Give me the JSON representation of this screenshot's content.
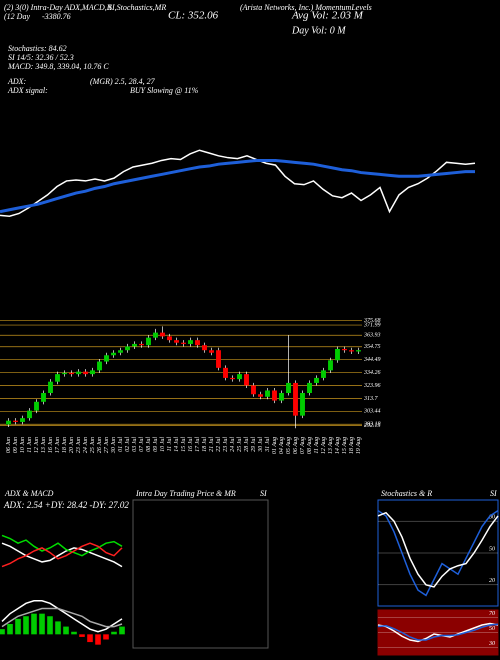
{
  "header": {
    "items": [
      "(2) 3(0) Intra-Day ADX,MACD,R",
      "SI,Stochastics,MR",
      "(Arista Networks, Inc.) MomentumLevels",
      "(12 Day",
      "-3380.76",
      "CL: 352.06",
      "Avg Vol: 2.03 M",
      "Day Vol: 0 M",
      "Stochastics: 84.62",
      "SI 14/5: 32.36 / 52.3",
      "MACD: 349.8, 339.04, 10.76 C",
      "ADX:",
      "(MGR) 2.5, 28.4, 27",
      "ADX signal:",
      "BUY Slowing @ 11%"
    ]
  },
  "chart_data": [
    {
      "type": "line",
      "ylim": [
        205,
        420
      ],
      "series": [
        {
          "color": "#ffffff",
          "values": [
            296,
            295,
            298,
            304,
            311,
            318,
            327,
            333,
            334,
            333,
            335,
            333,
            336,
            343,
            348,
            350,
            352,
            355,
            357,
            356,
            362,
            366,
            363,
            360,
            358,
            357,
            360,
            356,
            352,
            350,
            338,
            330,
            329,
            333,
            324,
            317,
            315,
            320,
            312,
            318,
            326,
            300,
            318,
            326,
            330,
            336,
            344,
            353,
            352,
            351,
            352.06
          ]
        },
        {
          "color": "#1e5fd9",
          "values": [
            300,
            302,
            304,
            306,
            308,
            311,
            314,
            317,
            320,
            322,
            325,
            327,
            330,
            332,
            334,
            336,
            338,
            340,
            342,
            344,
            346,
            348,
            349,
            351,
            352,
            353,
            354,
            355,
            355,
            355,
            354,
            353,
            352,
            351,
            349,
            347,
            345,
            344,
            342,
            341,
            340,
            339,
            338,
            338,
            338,
            339,
            340,
            341,
            342,
            343,
            343
          ]
        }
      ]
    },
    {
      "type": "candlestick",
      "ylim": [
        287,
        380
      ],
      "yticks": [
        375.68,
        371.99,
        363.93,
        354.75,
        344.49,
        334.26,
        323.96,
        313.7,
        303.44,
        293.18,
        292.15
      ],
      "up_color": "#00cc00",
      "down_color": "#ff0000",
      "level_color": "#c8961e",
      "categories": [
        "06 Jun",
        "09 Jun",
        "10 Jun",
        "11 Jun",
        "12 Jun",
        "13 Jun",
        "16 Jun",
        "17 Jun",
        "18 Jun",
        "20 Jun",
        "23 Jun",
        "24 Jun",
        "25 Jun",
        "26 Jun",
        "27 Jun",
        "30 Jun",
        "01 Jul",
        "02 Jul",
        "03 Jul",
        "07 Jul",
        "08 Jul",
        "09 Jul",
        "10 Jul",
        "11 Jul",
        "14 Jul",
        "15 Jul",
        "16 Jul",
        "17 Jul",
        "18 Jul",
        "21 Jul",
        "22 Jul",
        "23 Jul",
        "24 Jul",
        "25 Jul",
        "28 Jul",
        "29 Jul",
        "30 Jul",
        "31 Jul",
        "01 Aug",
        "04 Aug",
        "05 Aug",
        "06 Aug",
        "07 Aug",
        "08 Aug",
        "11 Aug",
        "12 Aug",
        "13 Aug",
        "14 Aug",
        "15 Aug",
        "18 Aug",
        "19 Aug"
      ],
      "open": [
        293,
        296,
        295,
        298,
        304,
        311,
        318,
        327,
        333,
        334,
        333,
        335,
        333,
        336,
        343,
        348,
        350,
        352,
        355,
        357,
        356,
        362,
        366,
        363,
        360,
        358,
        357,
        360,
        356,
        352,
        352,
        338,
        330,
        329,
        333,
        324,
        317,
        315,
        320,
        312,
        318,
        326,
        300,
        318,
        326,
        330,
        336,
        344,
        353,
        352,
        351
      ],
      "high": [
        298,
        298,
        300,
        306,
        313,
        320,
        329,
        335,
        336,
        336,
        337,
        337,
        338,
        345,
        350,
        352,
        354,
        357,
        359,
        359,
        364,
        369,
        371,
        365,
        362,
        360,
        362,
        362,
        358,
        354,
        354,
        340,
        332,
        335,
        335,
        326,
        319,
        322,
        322,
        320,
        364,
        328,
        320,
        328,
        332,
        338,
        346,
        355,
        355,
        354,
        354
      ],
      "low": [
        291,
        293,
        293,
        296,
        302,
        309,
        316,
        325,
        331,
        331,
        331,
        331,
        331,
        334,
        341,
        346,
        348,
        350,
        353,
        354,
        354,
        360,
        361,
        358,
        356,
        355,
        355,
        354,
        350,
        348,
        336,
        328,
        327,
        327,
        322,
        315,
        313,
        313,
        310,
        310,
        316,
        290,
        298,
        316,
        324,
        328,
        334,
        342,
        350,
        349,
        349
      ],
      "close": [
        296,
        295,
        298,
        304,
        311,
        318,
        327,
        333,
        334,
        333,
        335,
        333,
        336,
        343,
        348,
        350,
        352,
        355,
        357,
        356,
        362,
        366,
        363,
        360,
        358,
        357,
        360,
        356,
        352,
        350,
        338,
        330,
        329,
        333,
        324,
        317,
        315,
        320,
        312,
        318,
        326,
        300,
        318,
        326,
        330,
        336,
        344,
        353,
        352,
        351,
        352.06
      ]
    },
    {
      "type": "line",
      "title": "ADX & MACD",
      "subtitle": "ADX: 2.54 +DY: 28.42 -DY: 27.02",
      "ylim": [
        0,
        50
      ],
      "series": [
        {
          "color": "#ffffff",
          "values": [
            30,
            28,
            25,
            22,
            20,
            18,
            19,
            22,
            25,
            27,
            26,
            24,
            22,
            20,
            18,
            15
          ]
        },
        {
          "color": "#00dd00",
          "values": [
            35,
            33,
            30,
            32,
            28,
            25,
            27,
            30,
            26,
            24,
            22,
            25,
            27,
            30,
            31,
            28
          ]
        },
        {
          "color": "#ff2020",
          "values": [
            15,
            17,
            20,
            22,
            25,
            27,
            24,
            20,
            22,
            25,
            28,
            30,
            28,
            24,
            22,
            27
          ]
        }
      ]
    },
    {
      "type": "macd",
      "ylim": [
        -8,
        16
      ],
      "pos_color": "#00cc00",
      "neg_color": "#ff0000",
      "histogram": [
        2,
        4,
        6,
        7,
        8,
        8,
        7,
        5,
        3,
        1,
        -1,
        -3,
        -4,
        -2,
        1,
        3
      ],
      "series": [
        {
          "color": "#ffffff",
          "values": [
            5,
            8,
            10,
            12,
            13,
            13,
            12,
            10,
            8,
            6,
            4,
            2,
            1,
            2,
            4,
            6
          ]
        },
        {
          "color": "#aaaaaa",
          "values": [
            3,
            5,
            7,
            8,
            9,
            10,
            10,
            10,
            9,
            8,
            7,
            5,
            4,
            3,
            3,
            4
          ]
        }
      ]
    },
    {
      "type": "intraday",
      "title": "Intra Day Trading Price & MR",
      "subtitle": "SI"
    },
    {
      "type": "line",
      "title": "Stochastics & R",
      "subtitle": "SI",
      "ylim": [
        0,
        100
      ],
      "yticks": [
        20,
        50,
        80
      ],
      "background": "#000000",
      "border": "#1e5fd9",
      "series": [
        {
          "color": "#1e5fd9",
          "values": [
            90,
            85,
            70,
            50,
            30,
            15,
            10,
            25,
            40,
            35,
            30,
            45,
            60,
            75,
            85,
            90
          ]
        },
        {
          "color": "#ffffff",
          "values": [
            85,
            88,
            80,
            65,
            45,
            30,
            20,
            18,
            28,
            35,
            38,
            40,
            50,
            62,
            75,
            85
          ]
        }
      ]
    },
    {
      "type": "line",
      "ylim": [
        20,
        80
      ],
      "yticks": [
        30,
        50,
        70
      ],
      "background": "#8b0000",
      "border": "#8b0000",
      "series": [
        {
          "color": "#ffffff",
          "values": [
            60,
            58,
            52,
            45,
            40,
            38,
            42,
            48,
            46,
            44,
            48,
            52,
            56,
            60,
            62,
            60
          ]
        },
        {
          "color": "#1e5fd9",
          "values": [
            58,
            59,
            55,
            50,
            44,
            40,
            40,
            44,
            46,
            46,
            47,
            50,
            53,
            57,
            60,
            61
          ]
        }
      ]
    }
  ]
}
